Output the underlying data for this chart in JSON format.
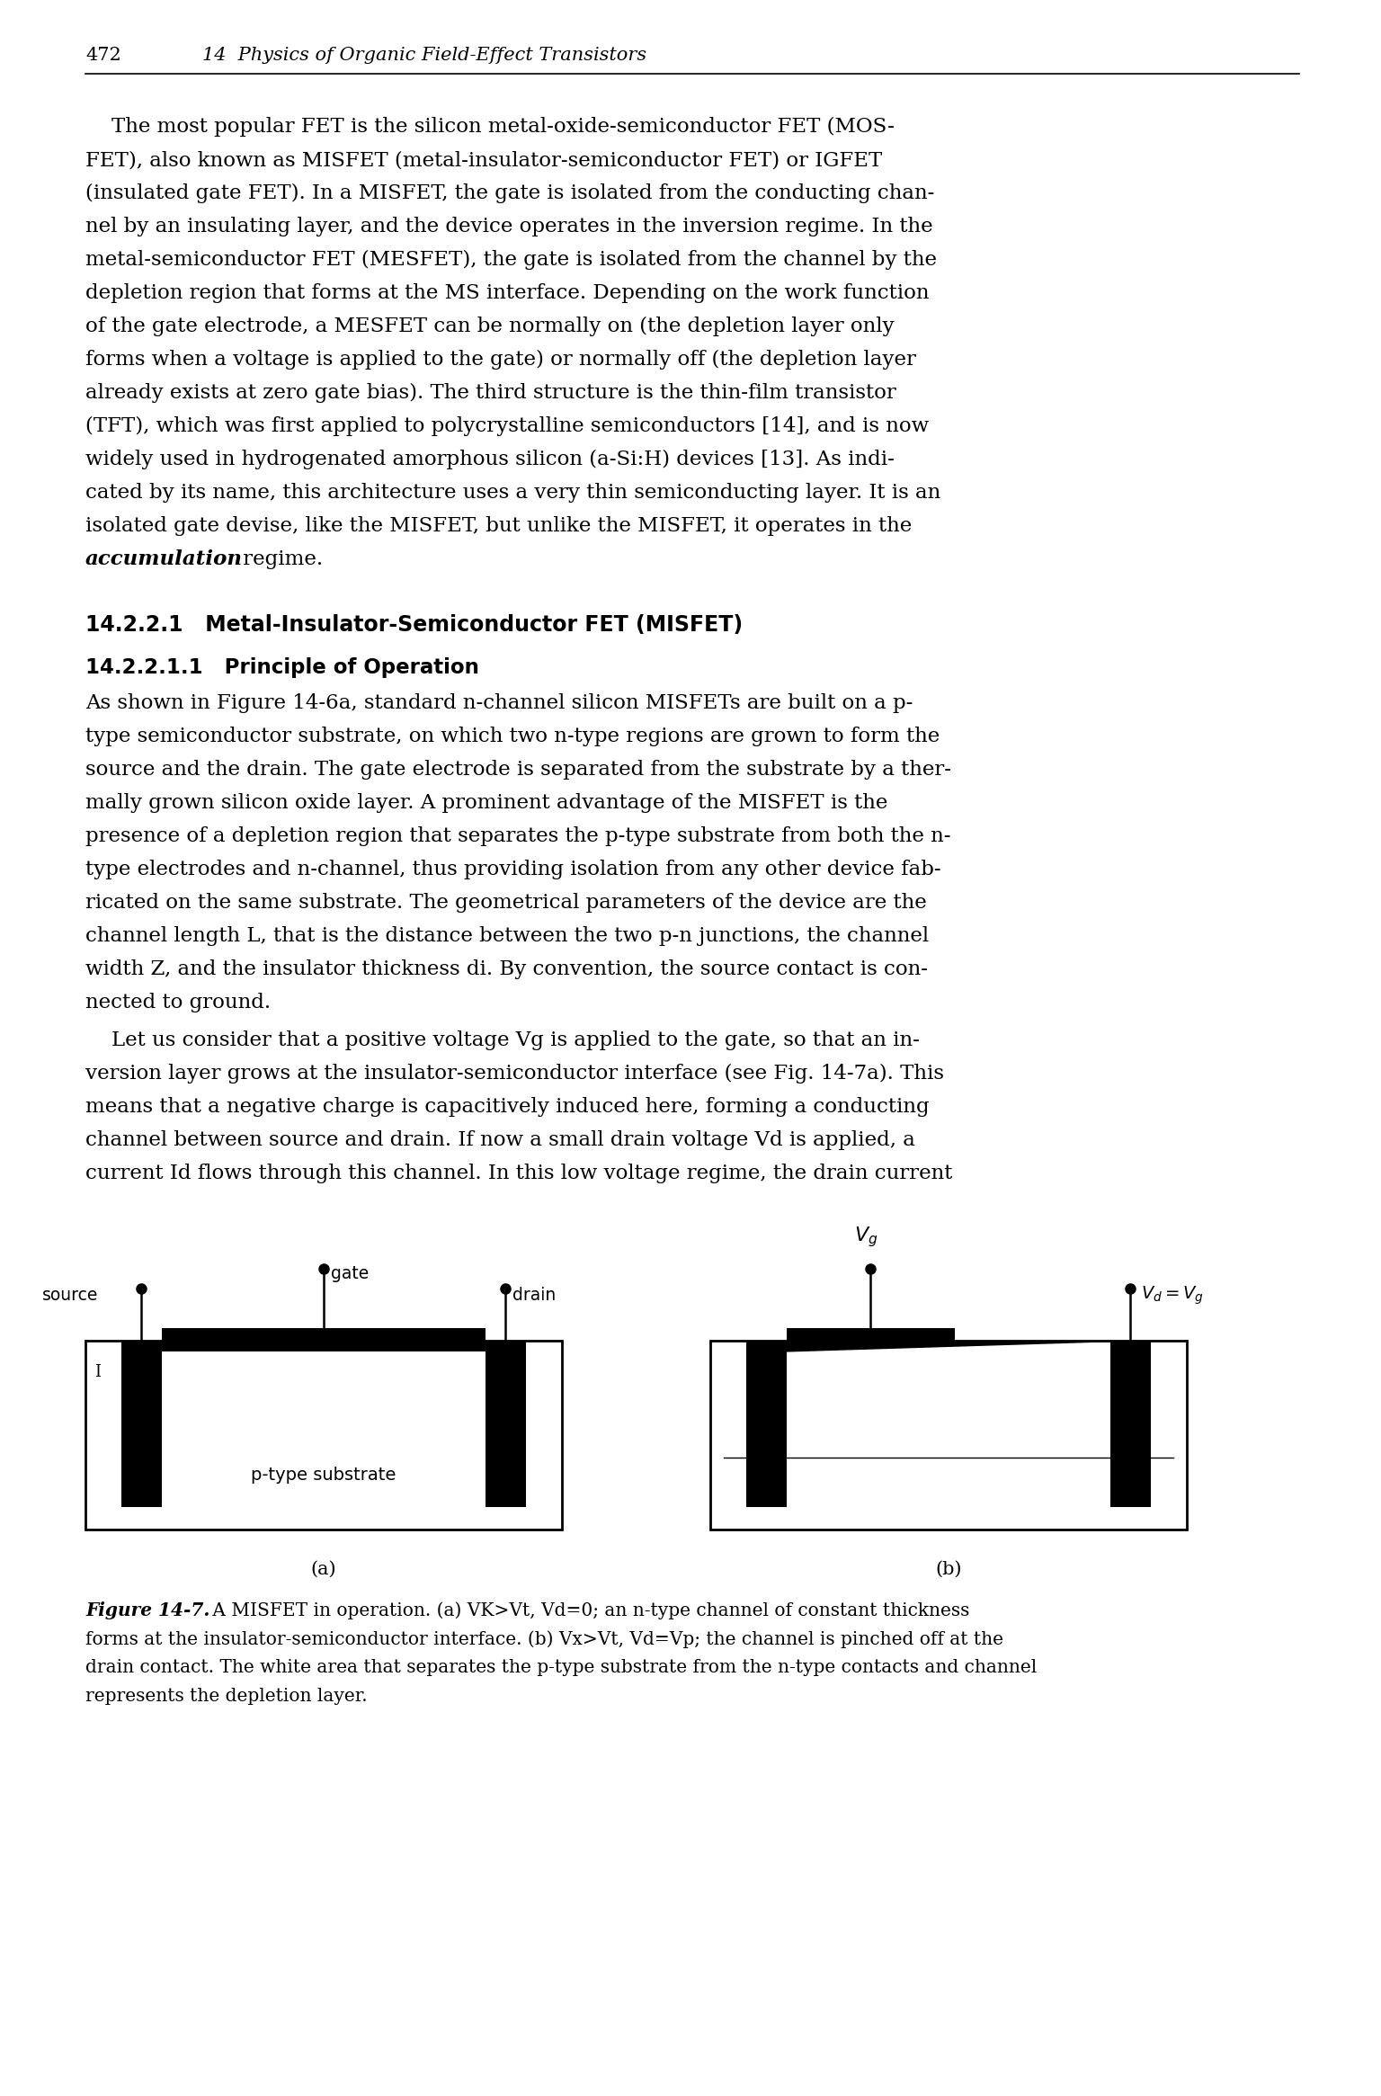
{
  "page_number": "472",
  "chapter_header": "14  Physics of Organic Field-Effect Transistors",
  "para1_lines": [
    "    The most popular FET is the silicon metal-oxide-semiconductor FET (MOS-",
    "FET), also known as MISFET (metal-insulator-semiconductor FET) or IGFET",
    "(insulated gate FET). In a MISFET, the gate is isolated from the conducting chan-",
    "nel by an insulating layer, and the device operates in the inversion regime. In the",
    "metal-semiconductor FET (MESFET), the gate is isolated from the channel by the",
    "depletion region that forms at the MS interface. Depending on the work function",
    "of the gate electrode, a MESFET can be normally on (the depletion layer only",
    "forms when a voltage is applied to the gate) or normally off (the depletion layer",
    "already exists at zero gate bias). The third structure is the thin-film transistor",
    "(TFT), which was first applied to polycrystalline semiconductors [14], and is now",
    "widely used in hydrogenated amorphous silicon (a-Si:H) devices [13]. As indi-",
    "cated by its name, this architecture uses a very thin semiconducting layer. It is an",
    "isolated gate devise, like the MISFET, but unlike the MISFET, it operates in the",
    "accumulation_italic regime."
  ],
  "section_heading": "14.2.2.1   Metal-Insulator-Semiconductor FET (MISFET)",
  "subsection_heading": "14.2.2.1.1   Principle of Operation",
  "para2_lines": [
    "As shown in Figure 14-6a, standard n-channel silicon MISFETs are built on a p-",
    "type semiconductor substrate, on which two n-type regions are grown to form the",
    "source and the drain. The gate electrode is separated from the substrate by a ther-",
    "mally grown silicon oxide layer. A prominent advantage of the MISFET is the",
    "presence of a depletion region that separates the p-type substrate from both the n-",
    "type electrodes and n-channel, thus providing isolation from any other device fab-",
    "ricated on the same substrate. The geometrical parameters of the device are the",
    "channel length L, that is the distance between the two p-n junctions, the channel",
    "width Z, and the insulator thickness di. By convention, the source contact is con-",
    "nected to ground."
  ],
  "para3_lines": [
    "    Let us consider that a positive voltage Vg is applied to the gate, so that an in-",
    "version layer grows at the insulator-semiconductor interface (see Fig. 14-7a). This",
    "means that a negative charge is capacitively induced here, forming a conducting",
    "channel between source and drain. If now a small drain voltage Vd is applied, a",
    "current Id flows through this channel. In this low voltage regime, the drain current"
  ],
  "caption_lines": [
    "Figure 14-7. A MISFET in operation. (a) VK>Vt, Vd=0; an n-type channel of constant thickness",
    "forms at the insulator-semiconductor interface. (b) Vx>Vt, Vd=Vp; the channel is pinched off at the",
    "drain contact. The white area that separates the p-type substrate from the n-type contacts and channel",
    "represents the depletion layer."
  ],
  "fig_label_a": "(a)",
  "fig_label_b": "(b)",
  "bg_color": "#ffffff",
  "black": "#000000"
}
